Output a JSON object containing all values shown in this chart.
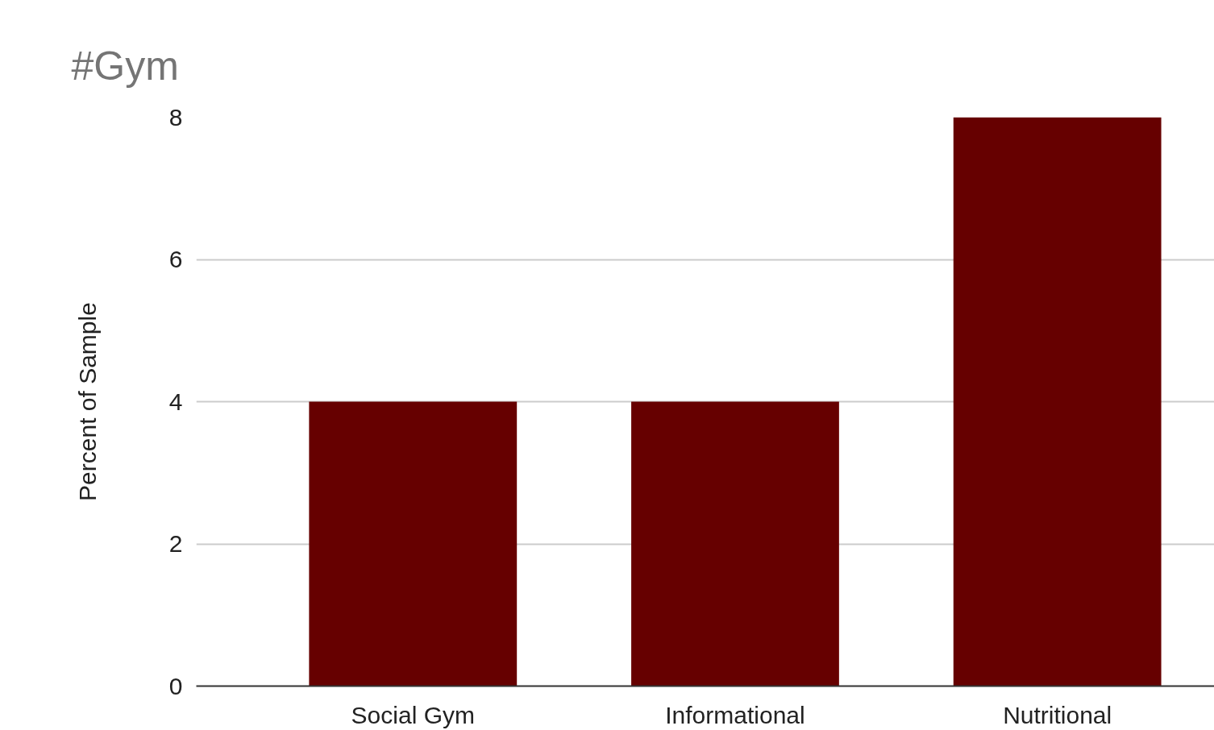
{
  "chart_data": {
    "type": "bar",
    "title": "#Gym",
    "ylabel": "Percent of Sample",
    "categories": [
      "Social Gym",
      "Informational",
      "Nutritional"
    ],
    "values": [
      4,
      4,
      8
    ],
    "color": "#660000",
    "ylim": [
      0,
      8
    ],
    "yticks": [
      0,
      2,
      4,
      6,
      8
    ],
    "grid": "y"
  }
}
